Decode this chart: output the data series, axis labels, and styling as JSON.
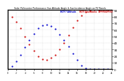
{
  "title": "Solar PV/Inverter Performance Sun Altitude Angle & Sun Incidence Angle on PV Panels",
  "legend_labels": [
    "HOT-7 Altitude",
    "HOT-7 Incidence",
    "APPFEED-TRO"
  ],
  "legend_colors": [
    "#0000cc",
    "#cc0000",
    "#cc0000"
  ],
  "ylim": [
    0,
    90
  ],
  "background_color": "#ffffff",
  "grid_color": "#bbbbbb",
  "altitude_x": [
    1,
    2,
    3,
    4,
    5,
    6,
    7,
    8,
    9,
    10,
    11,
    12,
    13,
    14,
    15,
    16,
    17,
    18,
    19,
    20,
    21,
    22,
    23
  ],
  "altitude_y": [
    5,
    12,
    22,
    33,
    44,
    54,
    62,
    67,
    68,
    66,
    61,
    53,
    44,
    34,
    24,
    14,
    6,
    1,
    0,
    0,
    0,
    0,
    0
  ],
  "incidence_x": [
    1,
    2,
    3,
    4,
    5,
    6,
    7,
    8,
    9,
    10,
    11,
    12,
    13,
    14,
    15,
    16,
    17,
    18,
    19,
    20,
    21,
    22,
    23
  ],
  "incidence_y": [
    80,
    72,
    62,
    50,
    38,
    28,
    20,
    15,
    14,
    17,
    22,
    30,
    40,
    52,
    63,
    74,
    82,
    87,
    89,
    90,
    90,
    90,
    90
  ],
  "yticks": [
    0,
    10,
    20,
    30,
    40,
    50,
    60,
    70,
    80,
    90
  ],
  "xlim": [
    0,
    24
  ]
}
